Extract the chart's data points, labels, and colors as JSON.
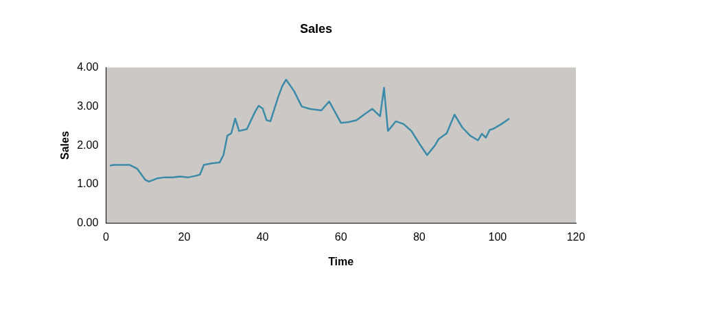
{
  "chart_data": {
    "type": "line",
    "title": "Sales",
    "xlabel": "Time",
    "ylabel": "Sales",
    "x": [
      1,
      2,
      4,
      6,
      8,
      10,
      11,
      13,
      15,
      17,
      19,
      21,
      23,
      24,
      25,
      27,
      29,
      30,
      31,
      32,
      33,
      34,
      36,
      38,
      39,
      40,
      41,
      42,
      44,
      45,
      46,
      48,
      50,
      52,
      55,
      57,
      60,
      62,
      64,
      66,
      68,
      70,
      71,
      72,
      74,
      76,
      78,
      80,
      82,
      84,
      85,
      87,
      89,
      91,
      93,
      95,
      96,
      97,
      98,
      99,
      101,
      103
    ],
    "series": [
      {
        "color": "#3a8aa8",
        "values": [
          1.48,
          1.5,
          1.5,
          1.5,
          1.4,
          1.12,
          1.07,
          1.15,
          1.18,
          1.18,
          1.2,
          1.18,
          1.22,
          1.25,
          1.5,
          1.54,
          1.56,
          1.75,
          2.25,
          2.31,
          2.69,
          2.37,
          2.42,
          2.85,
          3.02,
          2.95,
          2.65,
          2.62,
          3.25,
          3.52,
          3.69,
          3.4,
          3.0,
          2.94,
          2.9,
          3.13,
          2.58,
          2.6,
          2.65,
          2.8,
          2.94,
          2.75,
          3.48,
          2.37,
          2.62,
          2.55,
          2.37,
          2.05,
          1.75,
          2.0,
          2.17,
          2.31,
          2.79,
          2.46,
          2.25,
          2.13,
          2.3,
          2.2,
          2.4,
          2.43,
          2.55,
          2.69
        ]
      }
    ],
    "xlim": [
      0,
      120
    ],
    "xticks": [
      0,
      20,
      40,
      60,
      80,
      100,
      120
    ],
    "ylim": [
      0,
      4
    ],
    "yticks": [
      {
        "value": 0,
        "label": "0.00"
      },
      {
        "value": 1,
        "label": "1.00"
      },
      {
        "value": 2,
        "label": "2.00"
      },
      {
        "value": 3,
        "label": "3.00"
      },
      {
        "value": 4,
        "label": "4.00"
      }
    ],
    "grid": false,
    "legend": false,
    "marker": "none",
    "line_style": "solid"
  }
}
